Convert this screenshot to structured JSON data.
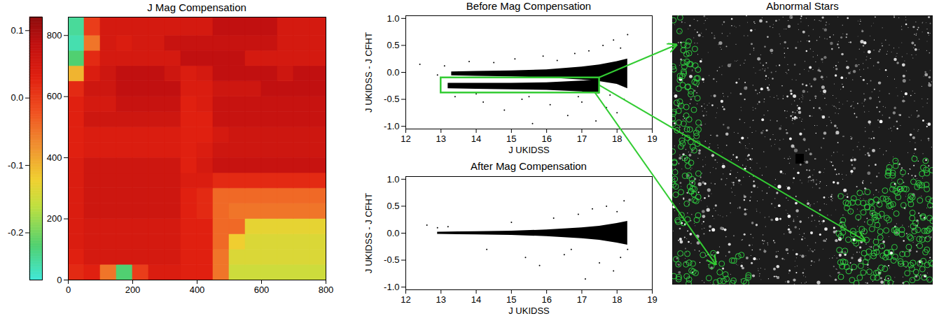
{
  "chart_data": [
    {
      "type": "heatmap",
      "title": "J Mag Compensation",
      "xlim": [
        0,
        800
      ],
      "xticks": [
        0,
        200,
        400,
        600,
        800
      ],
      "ylim": [
        0,
        860
      ],
      "yticks": [
        0,
        200,
        400,
        600,
        800
      ],
      "x_edges": [
        0,
        50,
        100,
        150,
        200,
        250,
        300,
        350,
        400,
        450,
        500,
        550,
        600,
        650,
        700,
        750,
        800
      ],
      "y_edges": [
        0,
        50,
        100,
        150,
        200,
        250,
        300,
        350,
        400,
        450,
        500,
        550,
        600,
        650,
        700,
        750,
        800,
        860
      ],
      "cells": [
        [
          0.02,
          0.03,
          -0.05,
          -0.22,
          0.0,
          0.04,
          0.04,
          0.03,
          0.03,
          -0.05,
          -0.15,
          -0.15,
          -0.15,
          -0.15,
          -0.15,
          -0.15
        ],
        [
          0.03,
          0.05,
          0.05,
          0.05,
          0.05,
          0.05,
          0.05,
          0.03,
          0.03,
          -0.05,
          -0.14,
          -0.14,
          -0.14,
          -0.14,
          -0.14,
          -0.14
        ],
        [
          0.04,
          0.05,
          0.05,
          0.05,
          0.05,
          0.05,
          0.05,
          0.03,
          0.03,
          -0.04,
          -0.12,
          -0.14,
          -0.14,
          -0.14,
          -0.14,
          -0.14
        ],
        [
          0.04,
          0.05,
          0.05,
          0.05,
          0.05,
          0.05,
          0.05,
          0.03,
          0.03,
          -0.04,
          -0.04,
          -0.13,
          -0.13,
          -0.13,
          -0.13,
          -0.13
        ],
        [
          0.04,
          0.06,
          0.06,
          0.06,
          0.06,
          0.06,
          0.06,
          0.03,
          0.02,
          -0.04,
          -0.05,
          -0.05,
          -0.05,
          -0.05,
          -0.05,
          -0.05
        ],
        [
          0.04,
          0.06,
          0.06,
          0.06,
          0.06,
          0.06,
          0.06,
          0.03,
          0.02,
          -0.04,
          -0.04,
          -0.04,
          -0.04,
          -0.04,
          -0.04,
          -0.04
        ],
        [
          0.04,
          0.06,
          0.06,
          0.06,
          0.06,
          0.06,
          0.06,
          0.04,
          0.04,
          0.02,
          0.02,
          0.02,
          0.02,
          0.02,
          0.02,
          0.02
        ],
        [
          0.04,
          0.06,
          0.06,
          0.06,
          0.06,
          0.06,
          0.06,
          0.03,
          0.05,
          0.07,
          0.07,
          0.07,
          0.07,
          0.07,
          0.07,
          0.07
        ],
        [
          0.03,
          0.04,
          0.04,
          0.04,
          0.04,
          0.04,
          0.04,
          0.03,
          0.04,
          0.06,
          0.06,
          0.06,
          0.06,
          0.06,
          0.06,
          0.06
        ],
        [
          0.03,
          0.04,
          0.04,
          0.04,
          0.04,
          0.04,
          0.04,
          0.03,
          0.03,
          0.05,
          0.06,
          0.06,
          0.06,
          0.06,
          0.06,
          0.06
        ],
        [
          0.03,
          0.06,
          0.06,
          0.06,
          0.06,
          0.06,
          0.06,
          0.03,
          0.03,
          0.07,
          0.07,
          0.07,
          0.07,
          0.07,
          0.07,
          0.07
        ],
        [
          0.03,
          0.05,
          0.05,
          0.07,
          0.07,
          0.07,
          0.07,
          0.03,
          0.04,
          0.07,
          0.07,
          0.07,
          0.07,
          0.07,
          0.07,
          0.07
        ],
        [
          0.02,
          0.06,
          0.06,
          0.08,
          0.08,
          0.08,
          0.08,
          0.04,
          0.04,
          0.06,
          0.06,
          0.06,
          0.08,
          0.08,
          0.08,
          0.08
        ],
        [
          -0.1,
          0.04,
          0.06,
          0.08,
          0.08,
          0.08,
          0.06,
          0.04,
          0.05,
          0.08,
          0.08,
          0.08,
          0.08,
          0.06,
          0.08,
          0.08
        ],
        [
          -0.22,
          0.02,
          0.05,
          0.05,
          0.05,
          0.05,
          0.05,
          0.08,
          0.08,
          0.08,
          0.08,
          0.05,
          0.05,
          0.05,
          0.05,
          0.05
        ],
        [
          -0.25,
          -0.05,
          0.05,
          0.04,
          0.05,
          0.05,
          0.07,
          0.07,
          0.07,
          0.07,
          0.07,
          0.07,
          0.07,
          0.05,
          0.05,
          0.05
        ],
        [
          -0.24,
          0.0,
          0.05,
          0.05,
          0.05,
          0.05,
          0.05,
          0.05,
          0.05,
          0.08,
          0.08,
          0.08,
          0.08,
          0.05,
          0.05,
          0.05
        ]
      ],
      "colorbar": {
        "range": [
          -0.27,
          0.12
        ],
        "ticks": [
          {
            "value": 0.1,
            "label": "0.1"
          },
          {
            "value": 0,
            "label": "0.0"
          },
          {
            "value": -0.1,
            "label": "-0.1"
          },
          {
            "value": -0.2,
            "label": "-0.2"
          }
        ]
      }
    },
    {
      "type": "scatter",
      "title": "Before Mag Compensation",
      "x_label": "J UKIDSS",
      "y_label": "J UKIDSS - J CFHT",
      "xlim": [
        12,
        19
      ],
      "xticks": [
        12,
        13,
        14,
        15,
        16,
        17,
        18,
        19
      ],
      "ylim": [
        -1.05,
        1.05
      ],
      "yticks": [
        {
          "value": -1,
          "label": "-1.0"
        },
        {
          "value": -0.5,
          "label": "-0.5"
        },
        {
          "value": 0,
          "label": "0.0"
        },
        {
          "value": 0.5,
          "label": "0.5"
        },
        {
          "value": 1,
          "label": "1.0"
        }
      ],
      "color": "#000000",
      "series": [
        {
          "type": "area",
          "x": [
            13.3,
            14,
            15,
            16,
            17,
            17.5,
            18,
            18.3
          ],
          "low": [
            -0.06,
            -0.07,
            -0.08,
            -0.1,
            -0.14,
            -0.17,
            -0.22,
            -0.3
          ],
          "high": [
            0.01,
            0.02,
            0.03,
            0.05,
            0.1,
            0.14,
            0.2,
            0.25
          ]
        },
        {
          "type": "area",
          "x": [
            13.2,
            14,
            15,
            16,
            17,
            17.5
          ],
          "low": [
            -0.3,
            -0.31,
            -0.32,
            -0.33,
            -0.36,
            -0.4
          ],
          "high": [
            -0.2,
            -0.2,
            -0.2,
            -0.19,
            -0.16,
            -0.15
          ]
        },
        {
          "type": "scatter",
          "x": [
            12.4,
            12.9,
            13.1,
            13.4,
            13.8,
            14.2,
            14.5,
            14.8,
            15.1,
            15.3,
            15.6,
            15.9,
            16.1,
            16.3,
            16.6,
            16.8,
            17.0,
            17.2,
            17.4,
            17.6,
            17.7,
            17.9,
            18.0,
            18.1,
            18.2,
            18.3,
            15.5,
            14.0,
            16.9,
            17.8
          ],
          "values": [
            0.15,
            -0.05,
            0.12,
            -0.45,
            0.2,
            -0.55,
            0.18,
            -0.7,
            0.25,
            -0.5,
            -0.95,
            0.3,
            -0.6,
            0.22,
            -0.8,
            0.35,
            -0.55,
            0.4,
            -0.9,
            0.5,
            -0.65,
            0.6,
            -0.75,
            0.45,
            -0.5,
            0.7,
            -0.45,
            -0.4,
            -0.45,
            -0.42
          ]
        }
      ],
      "highlight": {
        "x": [
          13,
          17.5
        ],
        "y": [
          -0.38,
          -0.1
        ],
        "color": "#33cc33"
      }
    },
    {
      "type": "scatter",
      "title": "After Mag Compensation",
      "x_label": "J UKIDSS",
      "y_label": "J UKIDSS - J CFHT",
      "xlim": [
        12,
        19
      ],
      "xticks": [
        12,
        13,
        14,
        15,
        16,
        17,
        18,
        19
      ],
      "ylim": [
        -1.05,
        1.05
      ],
      "yticks": [
        {
          "value": -1,
          "label": "-1.0"
        },
        {
          "value": -0.5,
          "label": "-0.5"
        },
        {
          "value": 0,
          "label": "0.0"
        },
        {
          "value": 0.5,
          "label": "0.5"
        },
        {
          "value": 1,
          "label": "1.0"
        }
      ],
      "color": "#000000",
      "series": [
        {
          "type": "area",
          "x": [
            12.9,
            13.5,
            14,
            15,
            16,
            17,
            17.5,
            18,
            18.3
          ],
          "low": [
            -0.02,
            -0.025,
            -0.03,
            -0.04,
            -0.06,
            -0.1,
            -0.13,
            -0.18,
            -0.22
          ],
          "high": [
            0.02,
            0.025,
            0.03,
            0.04,
            0.06,
            0.1,
            0.13,
            0.18,
            0.22
          ]
        },
        {
          "type": "scatter",
          "x": [
            12.6,
            12.9,
            13.2,
            14.3,
            15.0,
            15.4,
            15.8,
            16.2,
            16.5,
            16.9,
            17.1,
            17.3,
            17.5,
            17.7,
            17.9,
            18.0,
            18.1,
            18.2,
            18.3,
            16.7
          ],
          "values": [
            0.15,
            0.1,
            0.12,
            -0.3,
            0.2,
            -0.45,
            -0.6,
            0.28,
            -0.4,
            0.35,
            -0.85,
            0.45,
            -0.55,
            0.5,
            -0.7,
            0.4,
            -0.45,
            0.6,
            -0.3,
            -0.3
          ]
        }
      ]
    },
    {
      "type": "image",
      "title": "Abnormal Stars"
    }
  ]
}
